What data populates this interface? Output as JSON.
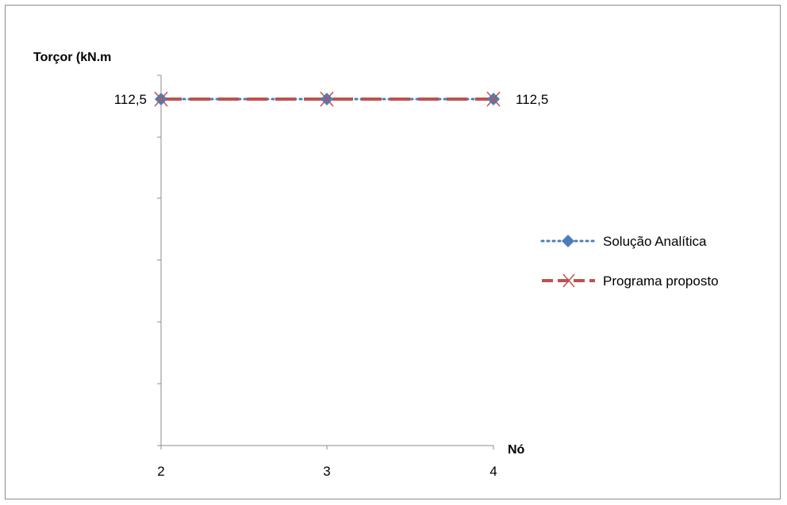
{
  "chart_data": {
    "type": "line",
    "xlabel": "Nó",
    "ylabel": "Torçor (kN.m",
    "categories": [
      "2",
      "3",
      "4"
    ],
    "y_tick_label": "112,5",
    "right_label": "112,5",
    "series": [
      {
        "name": "Solução Analítica",
        "values": [
          112.5,
          112.5,
          112.5
        ],
        "color": "#4a7ebb",
        "marker": "diamond",
        "dash": "dot"
      },
      {
        "name": "Programa proposto",
        "values": [
          112.5,
          112.5,
          112.5
        ],
        "color": "#c0504d",
        "marker": "x",
        "dash": "long-dash"
      }
    ],
    "legend_position": "right",
    "grid": false
  }
}
